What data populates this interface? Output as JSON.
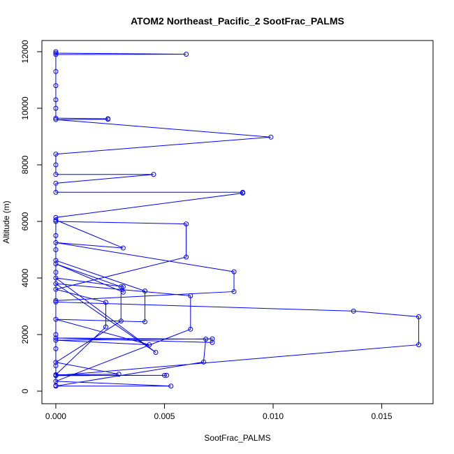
{
  "chart_data": {
    "type": "line",
    "title": "ATOM2 Northeast_Pacific_2 SootFrac_PALMS",
    "xlabel": "SootFrac_PALMS",
    "ylabel": "Altitude (m)",
    "color": "#0000ff",
    "markers": true,
    "x": [
      0,
      0,
      0.006,
      0,
      0,
      0,
      0,
      0,
      0,
      0.0024,
      0.0024,
      0,
      0.0099,
      0,
      0,
      0,
      0.0045,
      0,
      0,
      0.0086,
      0.0086,
      0,
      0,
      0.0031,
      0,
      0.0082,
      0.0082,
      0,
      0,
      0.0137,
      0.0167,
      0.0167,
      0,
      0.0051,
      0.005,
      0,
      0,
      0.0041,
      0.0041,
      0,
      0.0043,
      0,
      0.0072,
      0.0072,
      0,
      0.0069,
      0.0068,
      0,
      0.0053,
      0,
      0.0062,
      0.0062,
      0,
      0.0046,
      0,
      0.0031,
      0.0031,
      0,
      0.003,
      0.003,
      0,
      0.0029,
      0,
      0.0023,
      0.0023,
      0,
      0.006,
      0.006,
      0,
      0,
      0,
      0,
      0,
      0,
      0,
      0
    ],
    "values": [
      12000,
      11950,
      11910,
      11900,
      11300,
      10800,
      10300,
      10000,
      9650,
      9630,
      9610,
      9600,
      8980,
      8380,
      8000,
      7660,
      7660,
      7350,
      7030,
      7030,
      7000,
      6140,
      6050,
      5060,
      5250,
      4220,
      3520,
      3200,
      3150,
      2830,
      2630,
      1640,
      550,
      560,
      560,
      560,
      4620,
      3540,
      2450,
      2540,
      1640,
      1800,
      1850,
      1720,
      1880,
      1840,
      1030,
      180,
      180,
      350,
      2190,
      3370,
      3800,
      1370,
      4000,
      3690,
      3500,
      4500,
      3690,
      2480,
      1020,
      600,
      580,
      2270,
      3140,
      3600,
      4740,
      5910,
      6000,
      5500,
      5000,
      4200,
      2000,
      1500,
      900,
      200
    ],
    "xlim": [
      -0.00064,
      0.01736
    ],
    "ylim": [
      -444,
      12395
    ],
    "xticks": [
      {
        "value": 0,
        "label": "0.000"
      },
      {
        "value": 0.005,
        "label": "0.005"
      },
      {
        "value": 0.01,
        "label": "0.010"
      },
      {
        "value": 0.015,
        "label": "0.015"
      }
    ],
    "yticks": [
      0,
      2000,
      4000,
      6000,
      8000,
      10000,
      12000
    ]
  }
}
